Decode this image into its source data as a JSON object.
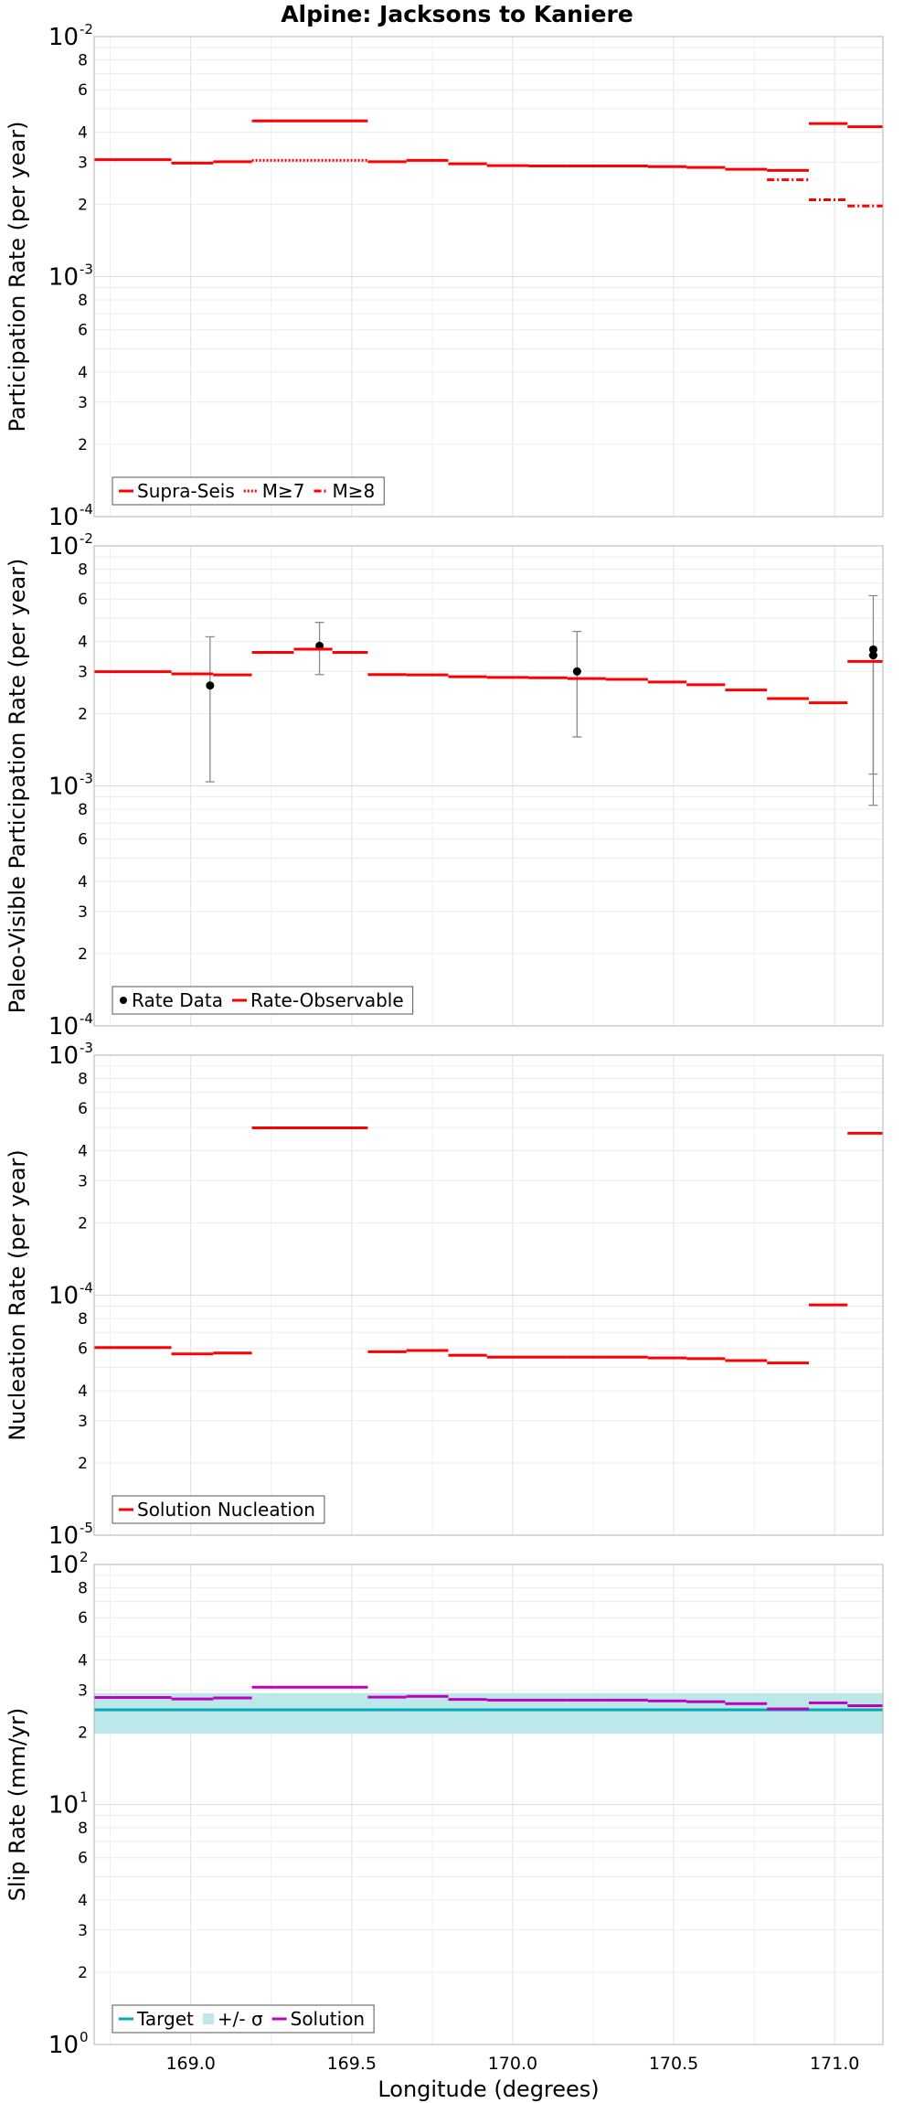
{
  "figure_title": "Alpine: Jacksons to Kaniere",
  "chart_data": [
    {
      "type": "line",
      "name": "participation",
      "ylabel": "Participation Rate (per year)",
      "xlabel": "",
      "xlim": [
        168.7,
        171.15
      ],
      "ylim": [
        0.0001,
        0.01
      ],
      "yscale": "log",
      "y_major_ticks": [
        {
          "base": "10",
          "exp": "-2",
          "value": 0.01
        },
        {
          "base": "10",
          "exp": "-3",
          "value": 0.001
        },
        {
          "base": "10",
          "exp": "-4",
          "value": 0.0001
        }
      ],
      "y_minor_ticks": [
        {
          "label": "8",
          "value": 0.008
        },
        {
          "label": "6",
          "value": 0.006
        },
        {
          "label": "4",
          "value": 0.004
        },
        {
          "label": "3",
          "value": 0.003
        },
        {
          "label": "2",
          "value": 0.002
        },
        {
          "label": "8",
          "value": 0.0008
        },
        {
          "label": "6",
          "value": 0.0006
        },
        {
          "label": "4",
          "value": 0.0004
        },
        {
          "label": "3",
          "value": 0.0003
        },
        {
          "label": "2",
          "value": 0.0002
        }
      ],
      "legend_position": "bottom-left",
      "series": [
        {
          "name": "Supra-Seis",
          "color": "#ff0000",
          "style": "solid",
          "steps": [
            [
              168.7,
              168.94,
              0.00307
            ],
            [
              168.94,
              169.07,
              0.00297
            ],
            [
              169.07,
              169.19,
              0.00301
            ],
            [
              169.19,
              169.55,
              0.00445
            ],
            [
              169.55,
              169.67,
              0.00301
            ],
            [
              169.67,
              169.8,
              0.00305
            ],
            [
              169.8,
              169.92,
              0.00295
            ],
            [
              169.92,
              170.05,
              0.0029
            ],
            [
              170.05,
              170.17,
              0.00289
            ],
            [
              170.17,
              170.29,
              0.00289
            ],
            [
              170.29,
              170.42,
              0.00289
            ],
            [
              170.42,
              170.54,
              0.00287
            ],
            [
              170.54,
              170.66,
              0.00285
            ],
            [
              170.66,
              170.79,
              0.0028
            ],
            [
              170.79,
              170.92,
              0.00277
            ],
            [
              170.92,
              171.04,
              0.00434
            ],
            [
              171.04,
              171.15,
              0.00421
            ]
          ]
        },
        {
          "name": "M≥7",
          "color": "#ff0000",
          "style": "dotted",
          "steps": [
            [
              169.19,
              169.55,
              0.00305
            ]
          ]
        },
        {
          "name": "M≥8",
          "color": "#ff0000",
          "style": "dashdot",
          "steps": [
            [
              170.79,
              170.92,
              0.00253
            ],
            [
              170.92,
              171.04,
              0.00209
            ],
            [
              171.04,
              171.15,
              0.00197
            ]
          ]
        }
      ]
    },
    {
      "type": "line",
      "name": "paleo",
      "ylabel": "Paleo-Visible Participation Rate (per year)",
      "xlabel": "",
      "xlim": [
        168.7,
        171.15
      ],
      "ylim": [
        0.0001,
        0.01
      ],
      "yscale": "log",
      "y_major_ticks": [
        {
          "base": "10",
          "exp": "-2",
          "value": 0.01
        },
        {
          "base": "10",
          "exp": "-3",
          "value": 0.001
        },
        {
          "base": "10",
          "exp": "-4",
          "value": 0.0001
        }
      ],
      "y_minor_ticks": [
        {
          "label": "8",
          "value": 0.008
        },
        {
          "label": "6",
          "value": 0.006
        },
        {
          "label": "4",
          "value": 0.004
        },
        {
          "label": "3",
          "value": 0.003
        },
        {
          "label": "2",
          "value": 0.002
        },
        {
          "label": "8",
          "value": 0.0008
        },
        {
          "label": "6",
          "value": 0.0006
        },
        {
          "label": "4",
          "value": 0.0004
        },
        {
          "label": "3",
          "value": 0.0003
        },
        {
          "label": "2",
          "value": 0.0002
        }
      ],
      "legend_position": "bottom-left",
      "series": [
        {
          "name": "Rate Data",
          "color": "#000000",
          "style": "points",
          "points": [
            {
              "x": 169.06,
              "y": 0.00262,
              "low": 0.00104,
              "high": 0.00418
            },
            {
              "x": 169.4,
              "y": 0.00383,
              "low": 0.00291,
              "high": 0.0048
            },
            {
              "x": 170.2,
              "y": 0.003,
              "low": 0.0016,
              "high": 0.0044
            },
            {
              "x": 171.12,
              "y": 0.0037,
              "low": 0.00112,
              "high": 0.0062
            },
            {
              "x": 171.12,
              "y": 0.0035,
              "low": 0.00083,
              "high": 0.0035
            }
          ]
        },
        {
          "name": "Rate-Observable",
          "color": "#ff0000",
          "style": "solid",
          "steps": [
            [
              168.7,
              168.94,
              0.00299
            ],
            [
              168.94,
              169.07,
              0.00293
            ],
            [
              169.07,
              169.19,
              0.0029
            ],
            [
              169.19,
              169.32,
              0.0036
            ],
            [
              169.32,
              169.44,
              0.00371
            ],
            [
              169.44,
              169.55,
              0.0036
            ],
            [
              169.55,
              169.67,
              0.00291
            ],
            [
              169.67,
              169.8,
              0.0029
            ],
            [
              169.8,
              169.92,
              0.00285
            ],
            [
              169.92,
              170.05,
              0.00283
            ],
            [
              170.05,
              170.17,
              0.00282
            ],
            [
              170.17,
              170.29,
              0.0028
            ],
            [
              170.29,
              170.42,
              0.00278
            ],
            [
              170.42,
              170.54,
              0.00271
            ],
            [
              170.54,
              170.66,
              0.00264
            ],
            [
              170.66,
              170.79,
              0.00251
            ],
            [
              170.79,
              170.92,
              0.00231
            ],
            [
              170.92,
              171.04,
              0.00222
            ],
            [
              171.04,
              171.15,
              0.0033
            ]
          ]
        }
      ]
    },
    {
      "type": "line",
      "name": "nucleation",
      "ylabel": "Nucleation Rate (per year)",
      "xlabel": "",
      "xlim": [
        168.7,
        171.15
      ],
      "ylim": [
        1e-05,
        0.001
      ],
      "yscale": "log",
      "y_major_ticks": [
        {
          "base": "10",
          "exp": "-3",
          "value": 0.001
        },
        {
          "base": "10",
          "exp": "-4",
          "value": 0.0001
        },
        {
          "base": "10",
          "exp": "-5",
          "value": 1e-05
        }
      ],
      "y_minor_ticks": [
        {
          "label": "8",
          "value": 0.0008
        },
        {
          "label": "6",
          "value": 0.0006
        },
        {
          "label": "4",
          "value": 0.0004
        },
        {
          "label": "3",
          "value": 0.0003
        },
        {
          "label": "2",
          "value": 0.0002
        },
        {
          "label": "8",
          "value": 8e-05
        },
        {
          "label": "6",
          "value": 6e-05
        },
        {
          "label": "4",
          "value": 4e-05
        },
        {
          "label": "3",
          "value": 3e-05
        },
        {
          "label": "2",
          "value": 2e-05
        }
      ],
      "legend_position": "bottom-left",
      "series": [
        {
          "name": "Solution Nucleation",
          "color": "#ff0000",
          "style": "solid",
          "steps": [
            [
              168.7,
              168.94,
              6.05e-05
            ],
            [
              168.94,
              169.07,
              5.69e-05
            ],
            [
              169.07,
              169.19,
              5.74e-05
            ],
            [
              169.19,
              169.55,
              0.000498
            ],
            [
              169.55,
              169.67,
              5.81e-05
            ],
            [
              169.67,
              169.8,
              5.88e-05
            ],
            [
              169.8,
              169.92,
              5.62e-05
            ],
            [
              169.92,
              170.05,
              5.52e-05
            ],
            [
              170.05,
              170.17,
              5.52e-05
            ],
            [
              170.17,
              170.29,
              5.52e-05
            ],
            [
              170.29,
              170.42,
              5.52e-05
            ],
            [
              170.42,
              170.54,
              5.48e-05
            ],
            [
              170.54,
              170.66,
              5.44e-05
            ],
            [
              170.66,
              170.79,
              5.34e-05
            ],
            [
              170.79,
              170.92,
              5.22e-05
            ],
            [
              170.92,
              171.04,
              9.11e-05
            ],
            [
              171.04,
              171.15,
              0.000473
            ]
          ]
        }
      ]
    },
    {
      "type": "line",
      "name": "sliprate",
      "ylabel": "Slip Rate (mm/yr)",
      "xlabel": "Longitude (degrees)",
      "xlim": [
        168.7,
        171.15
      ],
      "ylim": [
        1,
        100
      ],
      "yscale": "log",
      "x_ticks": [
        "169.0",
        "169.5",
        "170.0",
        "170.5",
        "171.0"
      ],
      "y_major_ticks": [
        {
          "base": "10",
          "exp": "2",
          "value": 100
        },
        {
          "base": "10",
          "exp": "1",
          "value": 10
        },
        {
          "base": "10",
          "exp": "0",
          "value": 1
        }
      ],
      "y_minor_ticks": [
        {
          "label": "8",
          "value": 80
        },
        {
          "label": "6",
          "value": 60
        },
        {
          "label": "4",
          "value": 40
        },
        {
          "label": "3",
          "value": 30
        },
        {
          "label": "2",
          "value": 20
        },
        {
          "label": "8",
          "value": 8
        },
        {
          "label": "6",
          "value": 6
        },
        {
          "label": "4",
          "value": 4
        },
        {
          "label": "3",
          "value": 3
        },
        {
          "label": "2",
          "value": 2
        }
      ],
      "legend_position": "bottom-left",
      "band": {
        "low": 19.7,
        "high": 29.1
      },
      "series": [
        {
          "name": "Target",
          "color": "#00a8b8",
          "style": "solid",
          "steps": [
            [
              168.7,
              171.15,
              24.8
            ]
          ]
        },
        {
          "name": "+/- σ",
          "color": "#bde8ea",
          "style": "band"
        },
        {
          "name": "Solution",
          "color": "#c000c0",
          "style": "solid",
          "steps": [
            [
              168.7,
              168.94,
              27.9
            ],
            [
              168.94,
              169.07,
              27.5
            ],
            [
              169.07,
              169.19,
              27.8
            ],
            [
              169.19,
              169.55,
              30.8
            ],
            [
              169.55,
              169.67,
              28.0
            ],
            [
              169.67,
              169.8,
              28.2
            ],
            [
              169.8,
              169.92,
              27.4
            ],
            [
              169.92,
              170.05,
              27.2
            ],
            [
              170.05,
              170.17,
              27.2
            ],
            [
              170.17,
              170.29,
              27.2
            ],
            [
              170.29,
              170.42,
              27.2
            ],
            [
              170.42,
              170.54,
              27.0
            ],
            [
              170.54,
              170.66,
              26.8
            ],
            [
              170.66,
              170.79,
              26.3
            ],
            [
              170.79,
              170.92,
              25.0
            ],
            [
              170.92,
              171.04,
              26.5
            ],
            [
              171.04,
              171.15,
              25.8
            ]
          ]
        }
      ]
    }
  ]
}
